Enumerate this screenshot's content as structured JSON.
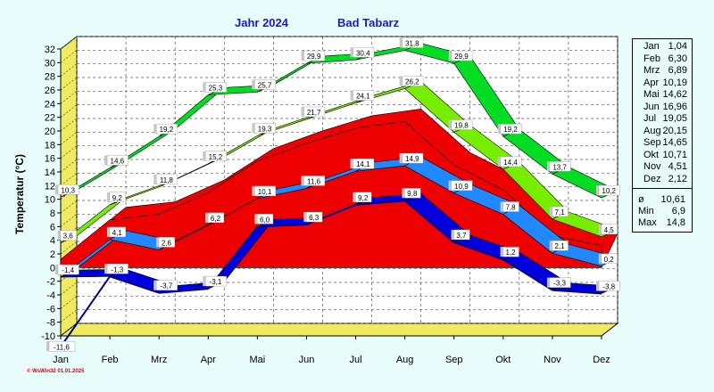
{
  "header": {
    "year_label": "Jahr  2024",
    "place_label": "Bad Tabarz"
  },
  "footer": {
    "text": "© WsWin32  01.01.2025"
  },
  "chart_data": {
    "type": "area",
    "ylabel": "Temperatur (°C)",
    "categories": [
      "Jan",
      "Feb",
      "Mrz",
      "Apr",
      "Mai",
      "Jun",
      "Jul",
      "Aug",
      "Sep",
      "Okt",
      "Nov",
      "Dez"
    ],
    "ylim": [
      -10,
      32
    ],
    "yticks": [
      -10,
      -8,
      -6,
      -4,
      -2,
      0,
      2,
      4,
      6,
      8,
      10,
      12,
      14,
      16,
      18,
      20,
      22,
      24,
      26,
      28,
      30,
      32
    ],
    "grid": true,
    "colors": {
      "max_abs": "#00dd22",
      "max_avg": "#77ee00",
      "range": "#ee0000",
      "mean": "#2288ff",
      "min_avg": "#0000dd",
      "min_abs": "#000088"
    },
    "series": [
      {
        "key": "max_abs",
        "values": [
          10.3,
          14.6,
          19.2,
          25.3,
          25.7,
          29.9,
          30.4,
          31.8,
          29.9,
          19.2,
          13.7,
          10.2
        ],
        "labels": [
          "10,3",
          "14,6",
          "19,2",
          "25,3",
          "25,7",
          "29,9",
          "30,4",
          "31,8",
          "29,9",
          "19,2",
          "13,7",
          "10,2"
        ]
      },
      {
        "key": "max_avg",
        "values": [
          3.6,
          9.2,
          11.8,
          15.2,
          19.3,
          21.7,
          24.1,
          26.2,
          19.8,
          14.4,
          7.1,
          4.5
        ],
        "labels": [
          "3,6",
          "9,2",
          "11,8",
          "15,2",
          "19,3",
          "21,7",
          "24,1",
          "26,2",
          "19,8",
          "14,4",
          "7,1",
          "4,5"
        ]
      },
      {
        "key": "mean",
        "values": [
          -1.4,
          4.1,
          2.6,
          6.2,
          10.1,
          11.6,
          14.1,
          14.9,
          10.9,
          7.8,
          2.1,
          0.2
        ],
        "labels": [
          "-1,4",
          "4,1",
          "2,6",
          "6,2",
          "10,1",
          "11,6",
          "14,1",
          "14,9",
          "10,9",
          "7,8",
          "2,1",
          "0,2"
        ]
      },
      {
        "key": "min_avg",
        "values": [
          -1.4,
          -1.3,
          -3.7,
          -3.1,
          6.0,
          6.3,
          9.2,
          9.8,
          3.7,
          1.2,
          -3.3,
          -3.8
        ],
        "labels": [
          "",
          "-1,3",
          "-3,7",
          "-3,1",
          "6,0",
          "6,3",
          "9,2",
          "9,8",
          "3,7",
          "1,2",
          "-3,3",
          "-3,8"
        ]
      },
      {
        "key": "min_abs",
        "values": [
          -11.6,
          -1.3,
          -3.7,
          -3.1,
          6.0,
          6.3,
          9.2,
          9.8,
          3.7,
          1.2,
          -3.3,
          -3.8
        ],
        "labels": [
          "-11,6",
          "",
          "",
          "",
          "",
          "",
          "",
          "",
          "",
          "",
          "",
          ""
        ]
      }
    ],
    "range_band": {
      "upper": [
        1.2,
        7.0,
        7.8,
        11.0,
        15.6,
        18.2,
        20.4,
        21.4,
        15.0,
        11.4,
        4.7,
        3.2
      ],
      "lower": [
        0,
        0,
        0,
        0,
        0,
        0,
        0,
        0,
        0,
        0,
        0,
        0
      ]
    }
  },
  "legend": {
    "months": [
      {
        "m": "Jan",
        "v": "1,04"
      },
      {
        "m": "Feb",
        "v": "6,30"
      },
      {
        "m": "Mrz",
        "v": "6,89"
      },
      {
        "m": "Apr",
        "v": "10,19"
      },
      {
        "m": "Mai",
        "v": "14,62"
      },
      {
        "m": "Jun",
        "v": "16,96"
      },
      {
        "m": "Jul",
        "v": "19,05"
      },
      {
        "m": "Aug",
        "v": "20,15"
      },
      {
        "m": "Sep",
        "v": "14,65"
      },
      {
        "m": "Okt",
        "v": "10,71"
      },
      {
        "m": "Nov",
        "v": "4,51"
      },
      {
        "m": "Dez",
        "v": "2,12"
      }
    ],
    "stats": [
      {
        "k": "ø",
        "v": "10,61"
      },
      {
        "k": "Min",
        "v": "6,9"
      },
      {
        "k": "Max",
        "v": "14,8"
      }
    ]
  }
}
